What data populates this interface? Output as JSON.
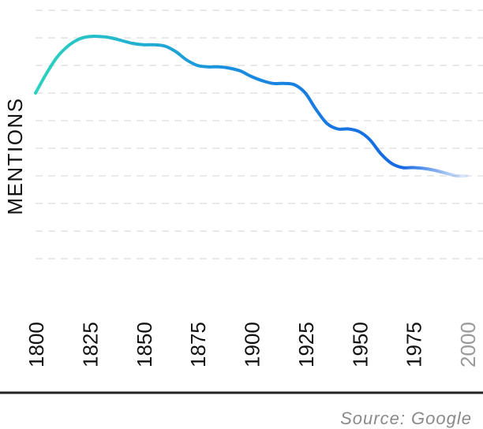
{
  "chart_data": {
    "type": "line",
    "title": "",
    "xlabel": "",
    "ylabel": "MENTIONS",
    "x": [
      1800,
      1805,
      1810,
      1815,
      1820,
      1825,
      1830,
      1835,
      1840,
      1845,
      1850,
      1855,
      1860,
      1865,
      1870,
      1875,
      1880,
      1885,
      1890,
      1895,
      1900,
      1905,
      1910,
      1915,
      1920,
      1925,
      1930,
      1935,
      1940,
      1945,
      1950,
      1955,
      1960,
      1965,
      1970,
      1975,
      1980,
      1985,
      1990,
      1995,
      2000
    ],
    "series": [
      {
        "values": [
          7.0,
          7.7,
          8.3,
          8.7,
          8.95,
          9.05,
          9.05,
          9.0,
          8.9,
          8.8,
          8.75,
          8.75,
          8.7,
          8.5,
          8.2,
          8.0,
          7.95,
          7.95,
          7.9,
          7.8,
          7.6,
          7.45,
          7.35,
          7.35,
          7.3,
          7.0,
          6.4,
          5.9,
          5.7,
          5.7,
          5.6,
          5.3,
          4.8,
          4.45,
          4.3,
          4.3,
          4.27,
          4.2,
          4.1,
          4.0,
          4.0
        ]
      }
    ],
    "xticks": [
      "1800",
      "1825",
      "1850",
      "1875",
      "1900",
      "1925",
      "1950",
      "1975",
      "2000"
    ],
    "xlim": [
      1800,
      2000
    ],
    "ylim": [
      0,
      10
    ],
    "grid": true,
    "line_colors": [
      "#2ad3bf",
      "#1a8fe0",
      "#1668e3"
    ],
    "muted_color": "#9a9a9a",
    "source": "Source: Google"
  }
}
